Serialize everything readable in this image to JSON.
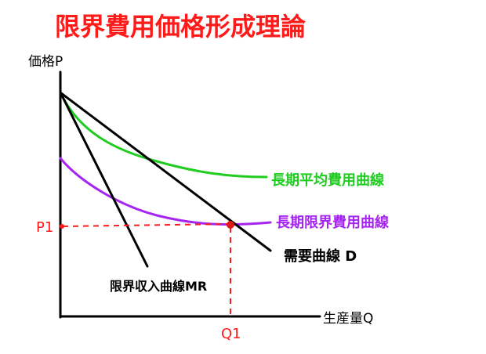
{
  "title": "限界費用価格形成理論",
  "axes": {
    "y_label": "価格P",
    "x_label": "生産量Q"
  },
  "markers": {
    "price": "P1",
    "quantity": "Q1"
  },
  "curves": {
    "average_cost": "長期平均費用曲線",
    "marginal_cost": "長期限界費用曲線",
    "demand": "需要曲線 D",
    "marginal_revenue": "限界収入曲線MR"
  },
  "colors": {
    "title": "#ff1a1a",
    "average_cost": "#1fcc1f",
    "marginal_cost": "#a526f0",
    "demand": "#000000",
    "marginal_revenue": "#000000",
    "markers": "#ff1a1a",
    "axis": "#000000"
  }
}
